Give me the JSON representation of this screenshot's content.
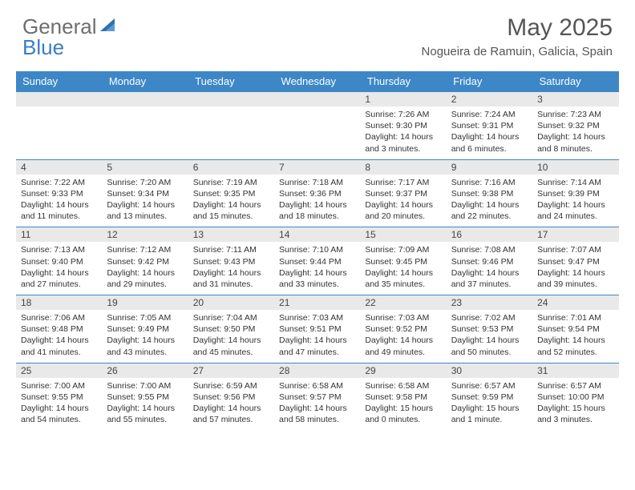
{
  "brand": {
    "general": "General",
    "blue": "Blue"
  },
  "title": "May 2025",
  "location": "Nogueira de Ramuin, Galicia, Spain",
  "colors": {
    "header_bg": "#3d87c7",
    "daynum_bg": "#e9e9e9",
    "border": "#3d87c7"
  },
  "weekdays": [
    "Sunday",
    "Monday",
    "Tuesday",
    "Wednesday",
    "Thursday",
    "Friday",
    "Saturday"
  ],
  "weeks": [
    {
      "days": [
        {
          "num": "",
          "sunrise": "",
          "sunset": "",
          "daylight": ""
        },
        {
          "num": "",
          "sunrise": "",
          "sunset": "",
          "daylight": ""
        },
        {
          "num": "",
          "sunrise": "",
          "sunset": "",
          "daylight": ""
        },
        {
          "num": "",
          "sunrise": "",
          "sunset": "",
          "daylight": ""
        },
        {
          "num": "1",
          "sunrise": "Sunrise: 7:26 AM",
          "sunset": "Sunset: 9:30 PM",
          "daylight": "Daylight: 14 hours and 3 minutes."
        },
        {
          "num": "2",
          "sunrise": "Sunrise: 7:24 AM",
          "sunset": "Sunset: 9:31 PM",
          "daylight": "Daylight: 14 hours and 6 minutes."
        },
        {
          "num": "3",
          "sunrise": "Sunrise: 7:23 AM",
          "sunset": "Sunset: 9:32 PM",
          "daylight": "Daylight: 14 hours and 8 minutes."
        }
      ]
    },
    {
      "days": [
        {
          "num": "4",
          "sunrise": "Sunrise: 7:22 AM",
          "sunset": "Sunset: 9:33 PM",
          "daylight": "Daylight: 14 hours and 11 minutes."
        },
        {
          "num": "5",
          "sunrise": "Sunrise: 7:20 AM",
          "sunset": "Sunset: 9:34 PM",
          "daylight": "Daylight: 14 hours and 13 minutes."
        },
        {
          "num": "6",
          "sunrise": "Sunrise: 7:19 AM",
          "sunset": "Sunset: 9:35 PM",
          "daylight": "Daylight: 14 hours and 15 minutes."
        },
        {
          "num": "7",
          "sunrise": "Sunrise: 7:18 AM",
          "sunset": "Sunset: 9:36 PM",
          "daylight": "Daylight: 14 hours and 18 minutes."
        },
        {
          "num": "8",
          "sunrise": "Sunrise: 7:17 AM",
          "sunset": "Sunset: 9:37 PM",
          "daylight": "Daylight: 14 hours and 20 minutes."
        },
        {
          "num": "9",
          "sunrise": "Sunrise: 7:16 AM",
          "sunset": "Sunset: 9:38 PM",
          "daylight": "Daylight: 14 hours and 22 minutes."
        },
        {
          "num": "10",
          "sunrise": "Sunrise: 7:14 AM",
          "sunset": "Sunset: 9:39 PM",
          "daylight": "Daylight: 14 hours and 24 minutes."
        }
      ]
    },
    {
      "days": [
        {
          "num": "11",
          "sunrise": "Sunrise: 7:13 AM",
          "sunset": "Sunset: 9:40 PM",
          "daylight": "Daylight: 14 hours and 27 minutes."
        },
        {
          "num": "12",
          "sunrise": "Sunrise: 7:12 AM",
          "sunset": "Sunset: 9:42 PM",
          "daylight": "Daylight: 14 hours and 29 minutes."
        },
        {
          "num": "13",
          "sunrise": "Sunrise: 7:11 AM",
          "sunset": "Sunset: 9:43 PM",
          "daylight": "Daylight: 14 hours and 31 minutes."
        },
        {
          "num": "14",
          "sunrise": "Sunrise: 7:10 AM",
          "sunset": "Sunset: 9:44 PM",
          "daylight": "Daylight: 14 hours and 33 minutes."
        },
        {
          "num": "15",
          "sunrise": "Sunrise: 7:09 AM",
          "sunset": "Sunset: 9:45 PM",
          "daylight": "Daylight: 14 hours and 35 minutes."
        },
        {
          "num": "16",
          "sunrise": "Sunrise: 7:08 AM",
          "sunset": "Sunset: 9:46 PM",
          "daylight": "Daylight: 14 hours and 37 minutes."
        },
        {
          "num": "17",
          "sunrise": "Sunrise: 7:07 AM",
          "sunset": "Sunset: 9:47 PM",
          "daylight": "Daylight: 14 hours and 39 minutes."
        }
      ]
    },
    {
      "days": [
        {
          "num": "18",
          "sunrise": "Sunrise: 7:06 AM",
          "sunset": "Sunset: 9:48 PM",
          "daylight": "Daylight: 14 hours and 41 minutes."
        },
        {
          "num": "19",
          "sunrise": "Sunrise: 7:05 AM",
          "sunset": "Sunset: 9:49 PM",
          "daylight": "Daylight: 14 hours and 43 minutes."
        },
        {
          "num": "20",
          "sunrise": "Sunrise: 7:04 AM",
          "sunset": "Sunset: 9:50 PM",
          "daylight": "Daylight: 14 hours and 45 minutes."
        },
        {
          "num": "21",
          "sunrise": "Sunrise: 7:03 AM",
          "sunset": "Sunset: 9:51 PM",
          "daylight": "Daylight: 14 hours and 47 minutes."
        },
        {
          "num": "22",
          "sunrise": "Sunrise: 7:03 AM",
          "sunset": "Sunset: 9:52 PM",
          "daylight": "Daylight: 14 hours and 49 minutes."
        },
        {
          "num": "23",
          "sunrise": "Sunrise: 7:02 AM",
          "sunset": "Sunset: 9:53 PM",
          "daylight": "Daylight: 14 hours and 50 minutes."
        },
        {
          "num": "24",
          "sunrise": "Sunrise: 7:01 AM",
          "sunset": "Sunset: 9:54 PM",
          "daylight": "Daylight: 14 hours and 52 minutes."
        }
      ]
    },
    {
      "days": [
        {
          "num": "25",
          "sunrise": "Sunrise: 7:00 AM",
          "sunset": "Sunset: 9:55 PM",
          "daylight": "Daylight: 14 hours and 54 minutes."
        },
        {
          "num": "26",
          "sunrise": "Sunrise: 7:00 AM",
          "sunset": "Sunset: 9:55 PM",
          "daylight": "Daylight: 14 hours and 55 minutes."
        },
        {
          "num": "27",
          "sunrise": "Sunrise: 6:59 AM",
          "sunset": "Sunset: 9:56 PM",
          "daylight": "Daylight: 14 hours and 57 minutes."
        },
        {
          "num": "28",
          "sunrise": "Sunrise: 6:58 AM",
          "sunset": "Sunset: 9:57 PM",
          "daylight": "Daylight: 14 hours and 58 minutes."
        },
        {
          "num": "29",
          "sunrise": "Sunrise: 6:58 AM",
          "sunset": "Sunset: 9:58 PM",
          "daylight": "Daylight: 15 hours and 0 minutes."
        },
        {
          "num": "30",
          "sunrise": "Sunrise: 6:57 AM",
          "sunset": "Sunset: 9:59 PM",
          "daylight": "Daylight: 15 hours and 1 minute."
        },
        {
          "num": "31",
          "sunrise": "Sunrise: 6:57 AM",
          "sunset": "Sunset: 10:00 PM",
          "daylight": "Daylight: 15 hours and 3 minutes."
        }
      ]
    }
  ]
}
